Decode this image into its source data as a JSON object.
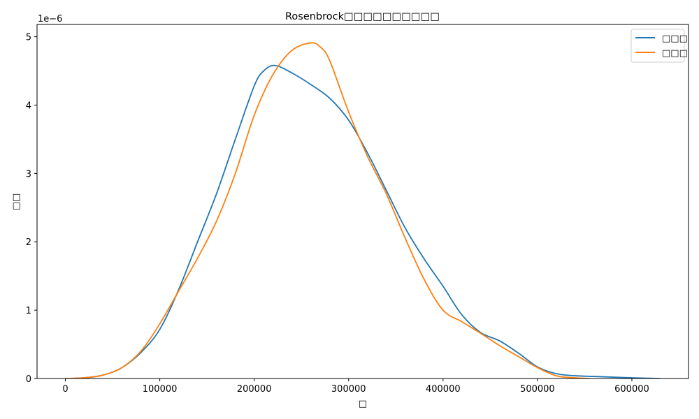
{
  "chart_data": {
    "type": "line",
    "title": "Rosenbrock□□□□□□□□□□",
    "xlabel": "□",
    "ylabel": "□□",
    "y_offset_label": "1e−6",
    "xlim": [
      -30000,
      660000
    ],
    "ylim": [
      0,
      5.18
    ],
    "x_ticks": [
      0,
      100000,
      200000,
      300000,
      400000,
      500000,
      600000
    ],
    "x_tick_labels": [
      "0",
      "100000",
      "200000",
      "300000",
      "400000",
      "500000",
      "600000"
    ],
    "y_ticks": [
      0,
      1,
      2,
      3,
      4,
      5
    ],
    "y_tick_labels": [
      "0",
      "1",
      "2",
      "3",
      "4",
      "5"
    ],
    "grid": false,
    "legend_position": "top-right",
    "series": [
      {
        "name": "□□□",
        "color": "#1f77b4",
        "x": [
          0,
          20000,
          40000,
          60000,
          80000,
          100000,
          120000,
          140000,
          160000,
          180000,
          200000,
          210000,
          222000,
          240000,
          260000,
          280000,
          300000,
          320000,
          340000,
          360000,
          380000,
          400000,
          420000,
          440000,
          460000,
          480000,
          500000,
          520000,
          540000,
          560000,
          580000,
          600000,
          630000
        ],
        "values": [
          0.0,
          0.01,
          0.05,
          0.16,
          0.38,
          0.72,
          1.3,
          2.0,
          2.7,
          3.5,
          4.28,
          4.5,
          4.58,
          4.47,
          4.3,
          4.1,
          3.78,
          3.3,
          2.75,
          2.2,
          1.75,
          1.35,
          0.93,
          0.67,
          0.55,
          0.37,
          0.17,
          0.07,
          0.04,
          0.03,
          0.02,
          0.01,
          0.0
        ]
      },
      {
        "name": "□□□",
        "color": "#ff7f0e",
        "x": [
          0,
          20000,
          40000,
          60000,
          80000,
          100000,
          120000,
          140000,
          160000,
          180000,
          200000,
          220000,
          240000,
          260000,
          270000,
          280000,
          300000,
          320000,
          340000,
          360000,
          380000,
          400000,
          420000,
          440000,
          460000,
          480000,
          500000,
          520000,
          540000,
          556000
        ],
        "values": [
          0.0,
          0.01,
          0.05,
          0.16,
          0.4,
          0.8,
          1.28,
          1.76,
          2.3,
          3.0,
          3.85,
          4.45,
          4.8,
          4.91,
          4.85,
          4.65,
          3.9,
          3.25,
          2.7,
          2.05,
          1.45,
          1.0,
          0.83,
          0.66,
          0.48,
          0.32,
          0.16,
          0.04,
          0.01,
          0.0
        ]
      }
    ]
  }
}
